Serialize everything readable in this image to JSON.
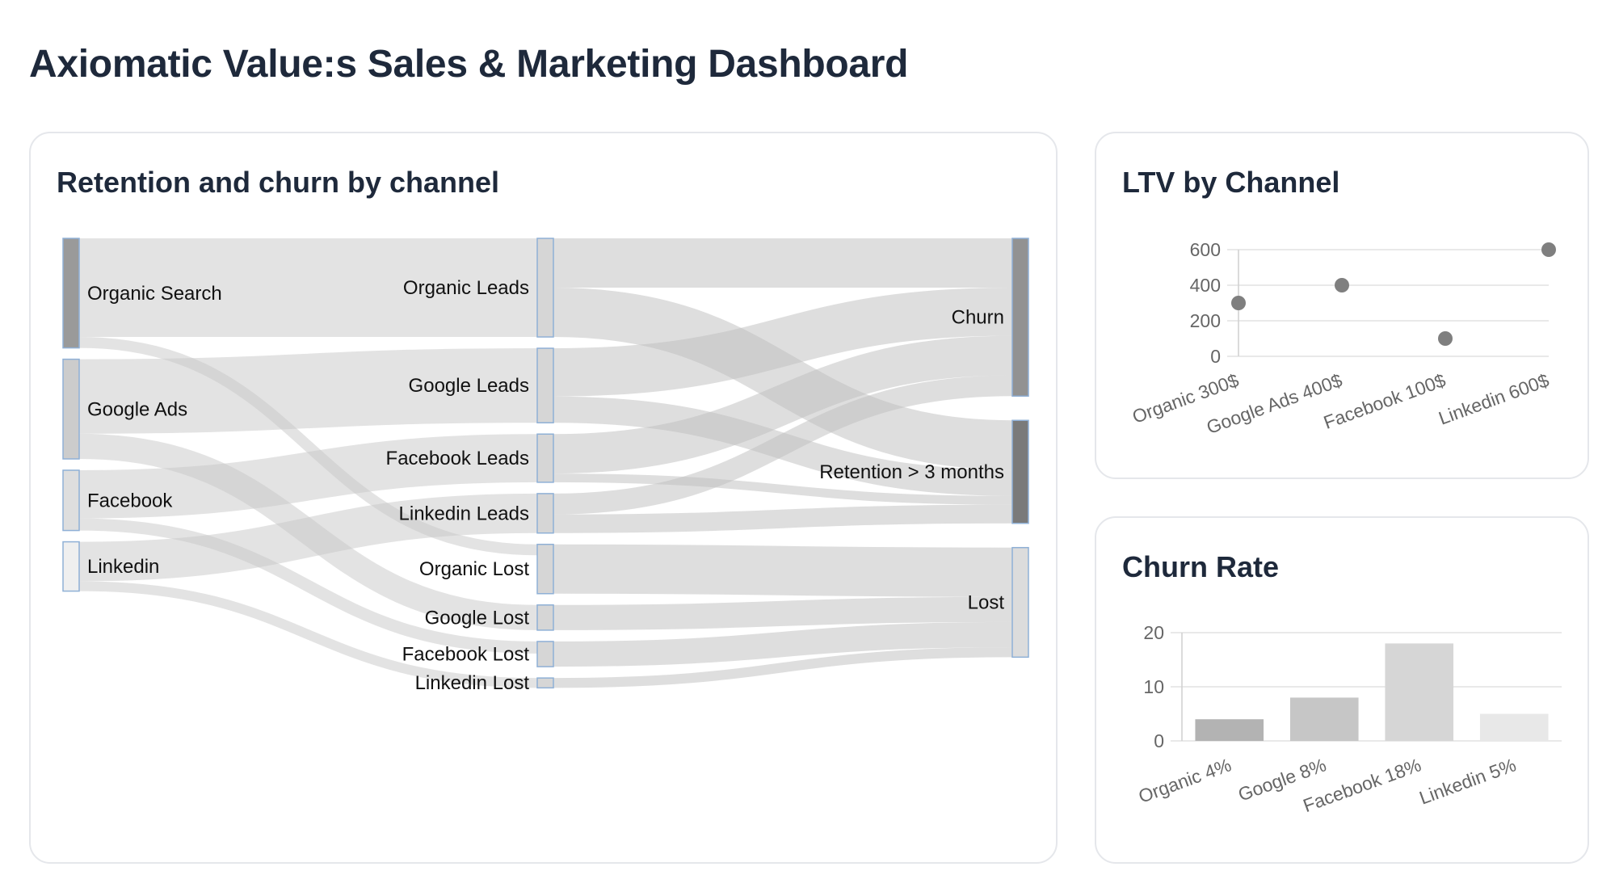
{
  "page": {
    "title": "Axiomatic Value:s Sales & Marketing Dashboard"
  },
  "sankey": {
    "title": "Retention and churn by channel",
    "chart_data": {
      "type": "sankey",
      "columns": [
        [
          "Organic Search",
          "Google Ads",
          "Facebook",
          "Linkedin"
        ],
        [
          "Organic Leads",
          "Google Leads",
          "Facebook Leads",
          "Linkedin Leads",
          "Organic Lost",
          "Google Lost",
          "Facebook Lost",
          "Linkedin Lost"
        ],
        [
          "Churn",
          "Retention > 3 months",
          "Lost"
        ]
      ],
      "node_colors": {
        "Organic Search": "#9a9a9a",
        "Google Ads": "#cccccc",
        "Facebook": "#dedede",
        "Linkedin": "#efefef",
        "Organic Leads": "#d6d6d6",
        "Google Leads": "#d6d6d6",
        "Facebook Leads": "#d6d6d6",
        "Linkedin Leads": "#d6d6d6",
        "Organic Lost": "#d6d6d6",
        "Google Lost": "#d6d6d6",
        "Facebook Lost": "#d6d6d6",
        "Linkedin Lost": "#d6d6d6",
        "Churn": "#929292",
        "Retention > 3 months": "#7a7a7a",
        "Lost": "#dcdcdc"
      },
      "links": [
        {
          "source": "Organic Search",
          "target": "Organic Leads",
          "value": 900
        },
        {
          "source": "Organic Search",
          "target": "Organic Lost",
          "value": 100
        },
        {
          "source": "Google Ads",
          "target": "Google Leads",
          "value": 680
        },
        {
          "source": "Google Ads",
          "target": "Google Lost",
          "value": 230
        },
        {
          "source": "Facebook",
          "target": "Facebook Leads",
          "value": 440
        },
        {
          "source": "Facebook",
          "target": "Facebook Lost",
          "value": 110
        },
        {
          "source": "Linkedin",
          "target": "Linkedin Leads",
          "value": 360
        },
        {
          "source": "Linkedin",
          "target": "Linkedin Lost",
          "value": 90
        },
        {
          "source": "Organic Leads",
          "target": "Churn",
          "value": 450
        },
        {
          "source": "Organic Leads",
          "target": "Retention > 3 months",
          "value": 450
        },
        {
          "source": "Google Leads",
          "target": "Churn",
          "value": 440
        },
        {
          "source": "Google Leads",
          "target": "Retention > 3 months",
          "value": 240
        },
        {
          "source": "Facebook Leads",
          "target": "Churn",
          "value": 360
        },
        {
          "source": "Facebook Leads",
          "target": "Retention > 3 months",
          "value": 80
        },
        {
          "source": "Linkedin Leads",
          "target": "Churn",
          "value": 190
        },
        {
          "source": "Linkedin Leads",
          "target": "Retention > 3 months",
          "value": 170
        },
        {
          "source": "Organic Lost",
          "target": "Lost",
          "value": 450
        },
        {
          "source": "Google Lost",
          "target": "Lost",
          "value": 230
        },
        {
          "source": "Facebook Lost",
          "target": "Lost",
          "value": 230
        },
        {
          "source": "Linkedin Lost",
          "target": "Lost",
          "value": 90
        }
      ]
    }
  },
  "ltv": {
    "title": "LTV by Channel",
    "chart_data": {
      "type": "scatter",
      "categories": [
        "Organic 300$",
        "Google Ads 400$",
        "Facebook 100$",
        "Linkedin 600$"
      ],
      "values": [
        300,
        400,
        100,
        600
      ],
      "ylim": [
        0,
        600
      ],
      "yticks": [
        0,
        200,
        400,
        600
      ],
      "ytick_labels": [
        "0",
        "200",
        "400",
        "600"
      ],
      "grid": true,
      "point_color": "#7f7f7f"
    }
  },
  "churn": {
    "title": "Churn Rate",
    "chart_data": {
      "type": "bar",
      "categories": [
        "Organic 4%",
        "Google 8%",
        "Facebook 18%",
        "Linkedin 5%"
      ],
      "values": [
        4,
        8,
        18,
        5
      ],
      "ylim": [
        0,
        20
      ],
      "yticks": [
        0,
        10,
        20
      ],
      "ytick_labels": [
        "0",
        "10",
        "20"
      ],
      "grid": true,
      "bar_colors": [
        "#b3b3b3",
        "#c6c6c6",
        "#d6d6d6",
        "#e8e8e8"
      ]
    }
  }
}
